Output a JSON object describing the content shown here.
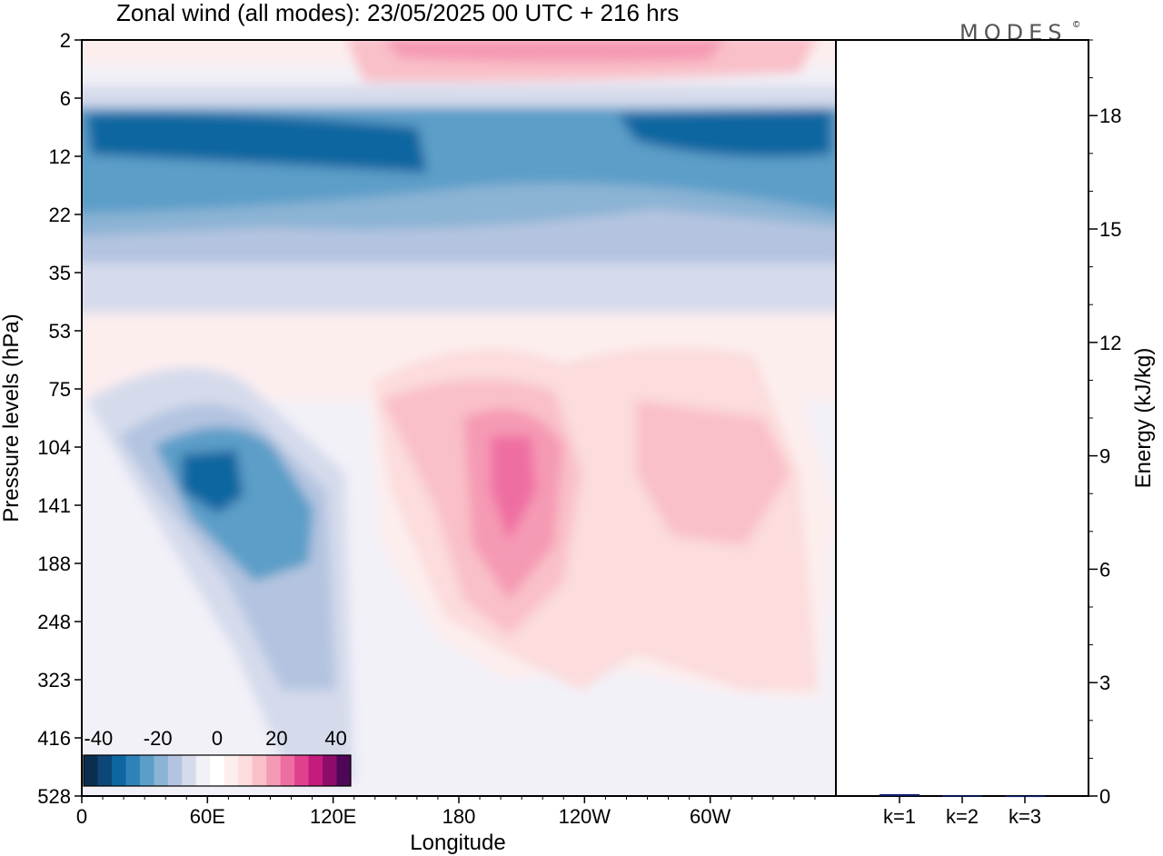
{
  "title": "Zonal wind (all modes):  23/05/2025  00 UTC  + 216 hrs",
  "logo": "MODES",
  "logo_mark": "©",
  "colors": {
    "levels": [
      "#0b2e4f",
      "#0d4777",
      "#0e66a0",
      "#2f82b8",
      "#5c9ec8",
      "#8bb3d4",
      "#b4c4e0",
      "#d6dbec",
      "#f2f1f8",
      "#ffffff",
      "#fdeeee",
      "#fcdcdc",
      "#f9c0c8",
      "#f59ab4",
      "#ef6ea2",
      "#e0418f",
      "#c41c7d",
      "#8d0c69",
      "#4e0757"
    ],
    "palette_bar": [
      "#0b2e4f",
      "#0d4777",
      "#0e66a0",
      "#2f82b8",
      "#5c9ec8",
      "#8bb3d4",
      "#b4c4e0",
      "#d6dbec",
      "#f2f1f8",
      "#ffffff",
      "#fdeeee",
      "#fcdcdc",
      "#f9c0c8",
      "#f59ab4",
      "#ef6ea2",
      "#e0418f",
      "#c41c7d",
      "#8d0c69",
      "#4e0757"
    ]
  },
  "chart_data": [
    {
      "type": "heatmap",
      "title": "Zonal wind (all modes):  23/05/2025  00 UTC  + 216 hrs",
      "xlabel": "Longitude",
      "ylabel": "Pressure levels (hPa)",
      "x_ticks": [
        "0",
        "60E",
        "120E",
        "180",
        "120W",
        "60W"
      ],
      "x_tick_values": [
        0,
        60,
        120,
        180,
        240,
        300
      ],
      "xlim": [
        0,
        360
      ],
      "y_ticks": [
        "2",
        "6",
        "12",
        "22",
        "35",
        "53",
        "75",
        "104",
        "141",
        "188",
        "248",
        "323",
        "416",
        "528"
      ],
      "y_scale": "model levels (irregular)",
      "colorbar": {
        "labels": [
          "-40",
          "-20",
          "0",
          "20",
          "40"
        ],
        "label_values": [
          -40,
          -20,
          0,
          20,
          40
        ],
        "range": [
          -45,
          45
        ],
        "n_colors": 19,
        "placement": "bottom-left inside plot"
      },
      "features": [
        {
          "description": "stratospheric easterly band",
          "lon_range": [
            0,
            360
          ],
          "level_range": [
            "6",
            "35"
          ],
          "min_value": -40
        },
        {
          "description": "easterly core",
          "lon_center": 65,
          "level": "141",
          "min_value": -40
        },
        {
          "description": "westerly core",
          "lon_center": 200,
          "level": "141",
          "max_value": 25
        },
        {
          "description": "westerly band",
          "lon_range": [
            270,
            340
          ],
          "level": "104",
          "max_value": 12
        },
        {
          "description": "top westerlies",
          "lon_range": [
            130,
            300
          ],
          "level": "2",
          "max_value": 20
        }
      ]
    },
    {
      "type": "bar",
      "title": "",
      "categories": [
        "k=1",
        "k=2",
        "k=3"
      ],
      "values": [
        0.05,
        0.02,
        0.01
      ],
      "ylabel": "Energy (kJ/kg)",
      "y_ticks": [
        "0",
        "3",
        "6",
        "9",
        "12",
        "15",
        "18"
      ],
      "ylim": [
        0,
        20
      ],
      "bar_color": "#0d1b6e"
    }
  ]
}
